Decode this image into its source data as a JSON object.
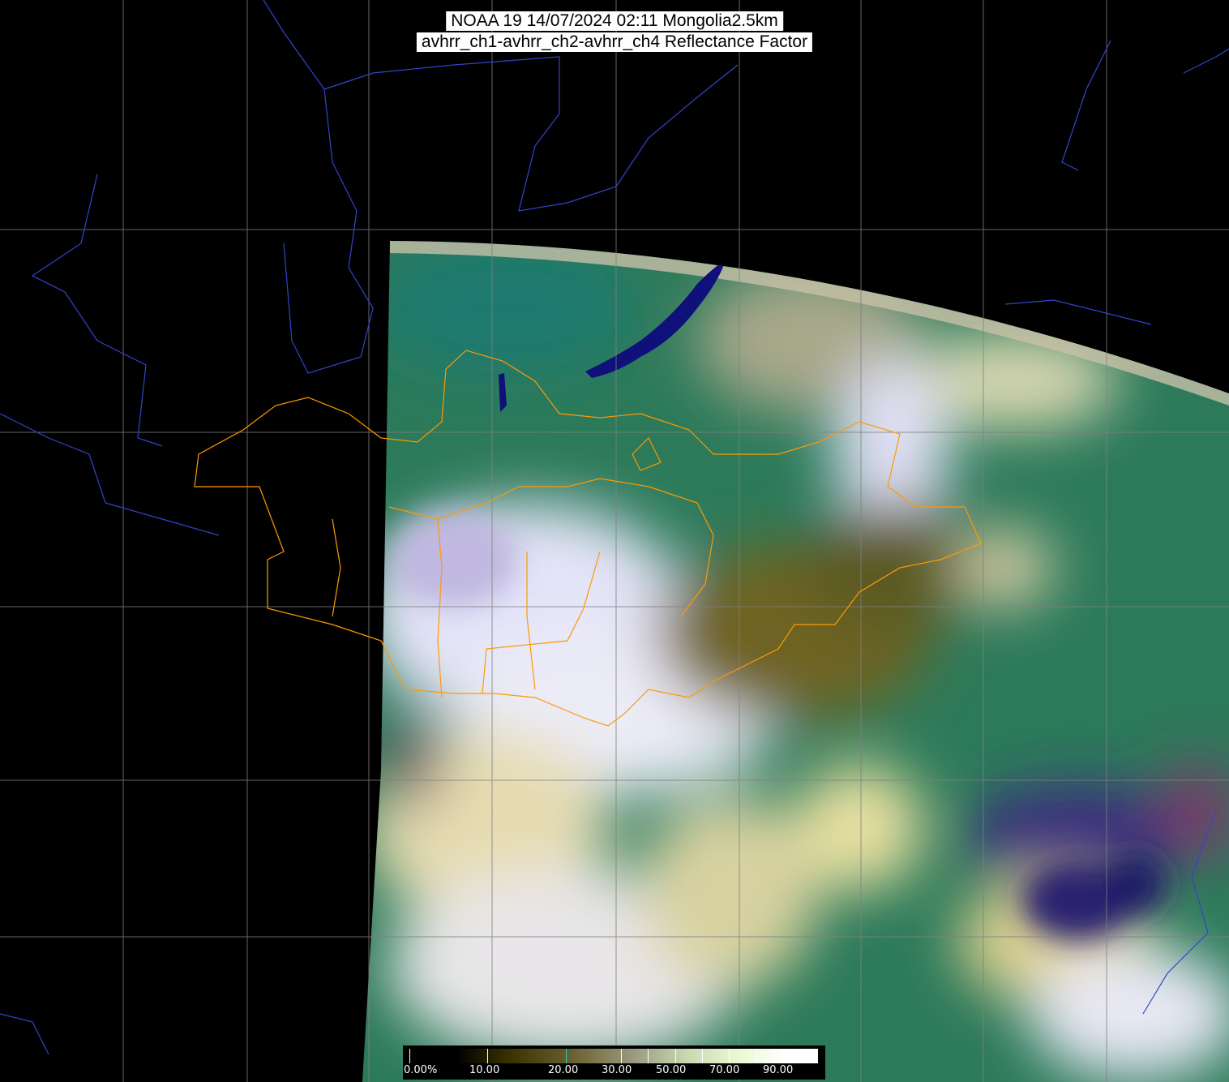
{
  "title": {
    "line1": "NOAA 19 14/07/2024 02:11 Mongolia2.5km",
    "line2": "avhrr_ch1-avhrr_ch2-avhrr_ch4 Reflectance Factor"
  },
  "colorbar": {
    "labels": [
      "0.00%",
      "10.00",
      "20.00",
      "30.00",
      "50.00",
      "70.00",
      "90.00"
    ],
    "colors": [
      "#000000",
      "#3a3300",
      "#6b6030",
      "#9a9a80",
      "#c8d8b0",
      "#e8f8d0",
      "#ffffff"
    ]
  },
  "colors": {
    "background": "#000000",
    "graticule": "#808080",
    "coastline": "#3344cc",
    "admin_border": "#ff9900",
    "vegetation": "#2f7a55",
    "cloud": "#d8d8f0",
    "desert": "#6b6020",
    "water": "#10107a"
  }
}
